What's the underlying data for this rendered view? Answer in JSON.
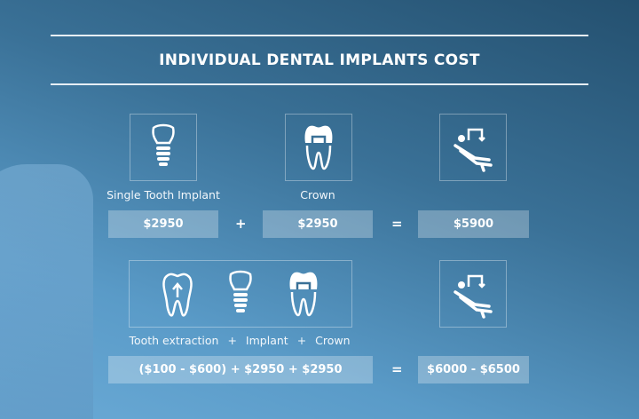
{
  "title": "INDIVIDUAL DENTAL IMPLANTS COST",
  "row1": {
    "labels": [
      "Single Tooth Implant",
      "Crown"
    ],
    "prices": [
      "$2950",
      "$2950",
      "$5900"
    ],
    "plus": "+",
    "equals": "="
  },
  "row2": {
    "labels": [
      "Tooth extraction",
      "+",
      "Implant",
      "+",
      "Crown"
    ],
    "formula": "($100 - $600) + $2950 + $2950",
    "equals": "=",
    "total": "$6000 - $6500"
  },
  "icons": [
    "implant-icon",
    "crown-icon",
    "dental-chair-icon",
    "tooth-extraction-icon"
  ]
}
